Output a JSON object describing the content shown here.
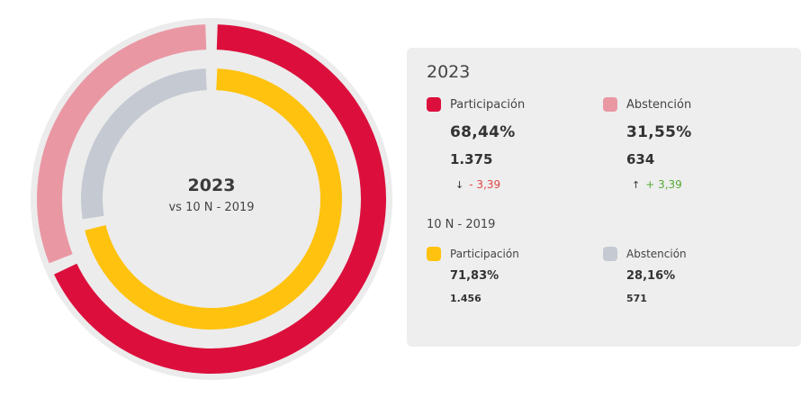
{
  "chart_data": {
    "type": "donut",
    "center": {
      "title": "2023",
      "subtitle": "vs 10 N - 2019"
    },
    "rings": [
      {
        "name": "2023",
        "slices": [
          {
            "label": "Participación",
            "value": 68.44,
            "color": "#dc0f3c"
          },
          {
            "label": "Abstención",
            "value": 31.55,
            "color": "#ea97a4"
          }
        ]
      },
      {
        "name": "10 N - 2019",
        "slices": [
          {
            "label": "Participación",
            "value": 71.83,
            "color": "#ffc20e"
          },
          {
            "label": "Abstención",
            "value": 28.16,
            "color": "#c4c9d2"
          }
        ]
      }
    ]
  },
  "panel": {
    "year": "2023",
    "current": [
      {
        "label": "Participación",
        "pct": "68,44%",
        "count": "1.375",
        "diff_arrow": "↓",
        "diff": "- 3,39",
        "direction": "down",
        "color": "#dc0f3c"
      },
      {
        "label": "Abstención",
        "pct": "31,55%",
        "count": "634",
        "diff_arrow": "↑",
        "diff": "+ 3,39",
        "direction": "up",
        "color": "#ea97a4"
      }
    ],
    "previous_title": "10 N - 2019",
    "previous": [
      {
        "label": "Participación",
        "pct": "71,83%",
        "count": "1.456",
        "color": "#ffc20e"
      },
      {
        "label": "Abstención",
        "pct": "28,16%",
        "count": "571",
        "color": "#c4c9d2"
      }
    ]
  }
}
